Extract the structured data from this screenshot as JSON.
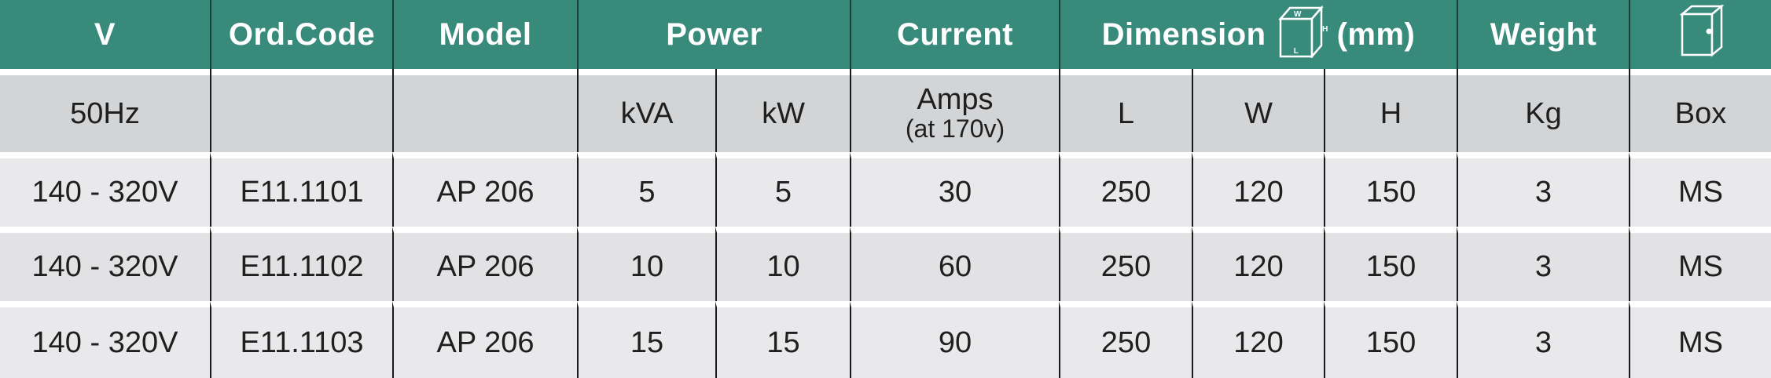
{
  "header": {
    "v": "V",
    "ord_code": "Ord.Code",
    "model": "Model",
    "power": "Power",
    "current": "Current",
    "dimension": "Dimension",
    "dimension_unit": "(mm)",
    "dimension_icon_labels": {
      "w": "W",
      "h": "H",
      "l": "L"
    },
    "weight": "Weight",
    "box_icon": "box-cabinet-icon"
  },
  "subheader": {
    "v": "50Hz",
    "ord_code": "",
    "model": "",
    "kva": "kVA",
    "kw": "kW",
    "amps": "Amps",
    "amps_note": "(at 170v)",
    "l": "L",
    "w": "W",
    "h": "H",
    "kg": "Kg",
    "box": "Box"
  },
  "rows": [
    {
      "v": "140 - 320V",
      "ord_code": "E11.1101",
      "model": "AP 206",
      "kva": "5",
      "kw": "5",
      "amps": "30",
      "l": "250",
      "w": "120",
      "h": "150",
      "kg": "3",
      "box": "MS"
    },
    {
      "v": "140 - 320V",
      "ord_code": "E11.1102",
      "model": "AP 206",
      "kva": "10",
      "kw": "10",
      "amps": "60",
      "l": "250",
      "w": "120",
      "h": "150",
      "kg": "3",
      "box": "MS"
    },
    {
      "v": "140 - 320V",
      "ord_code": "E11.1103",
      "model": "AP 206",
      "kva": "15",
      "kw": "15",
      "amps": "90",
      "l": "250",
      "w": "120",
      "h": "150",
      "kg": "3",
      "box": "MS"
    }
  ],
  "colors": {
    "header_bg": "#388a7b",
    "subheader_bg": "#d3d4d6",
    "row_bg": "#e9e9eb"
  }
}
